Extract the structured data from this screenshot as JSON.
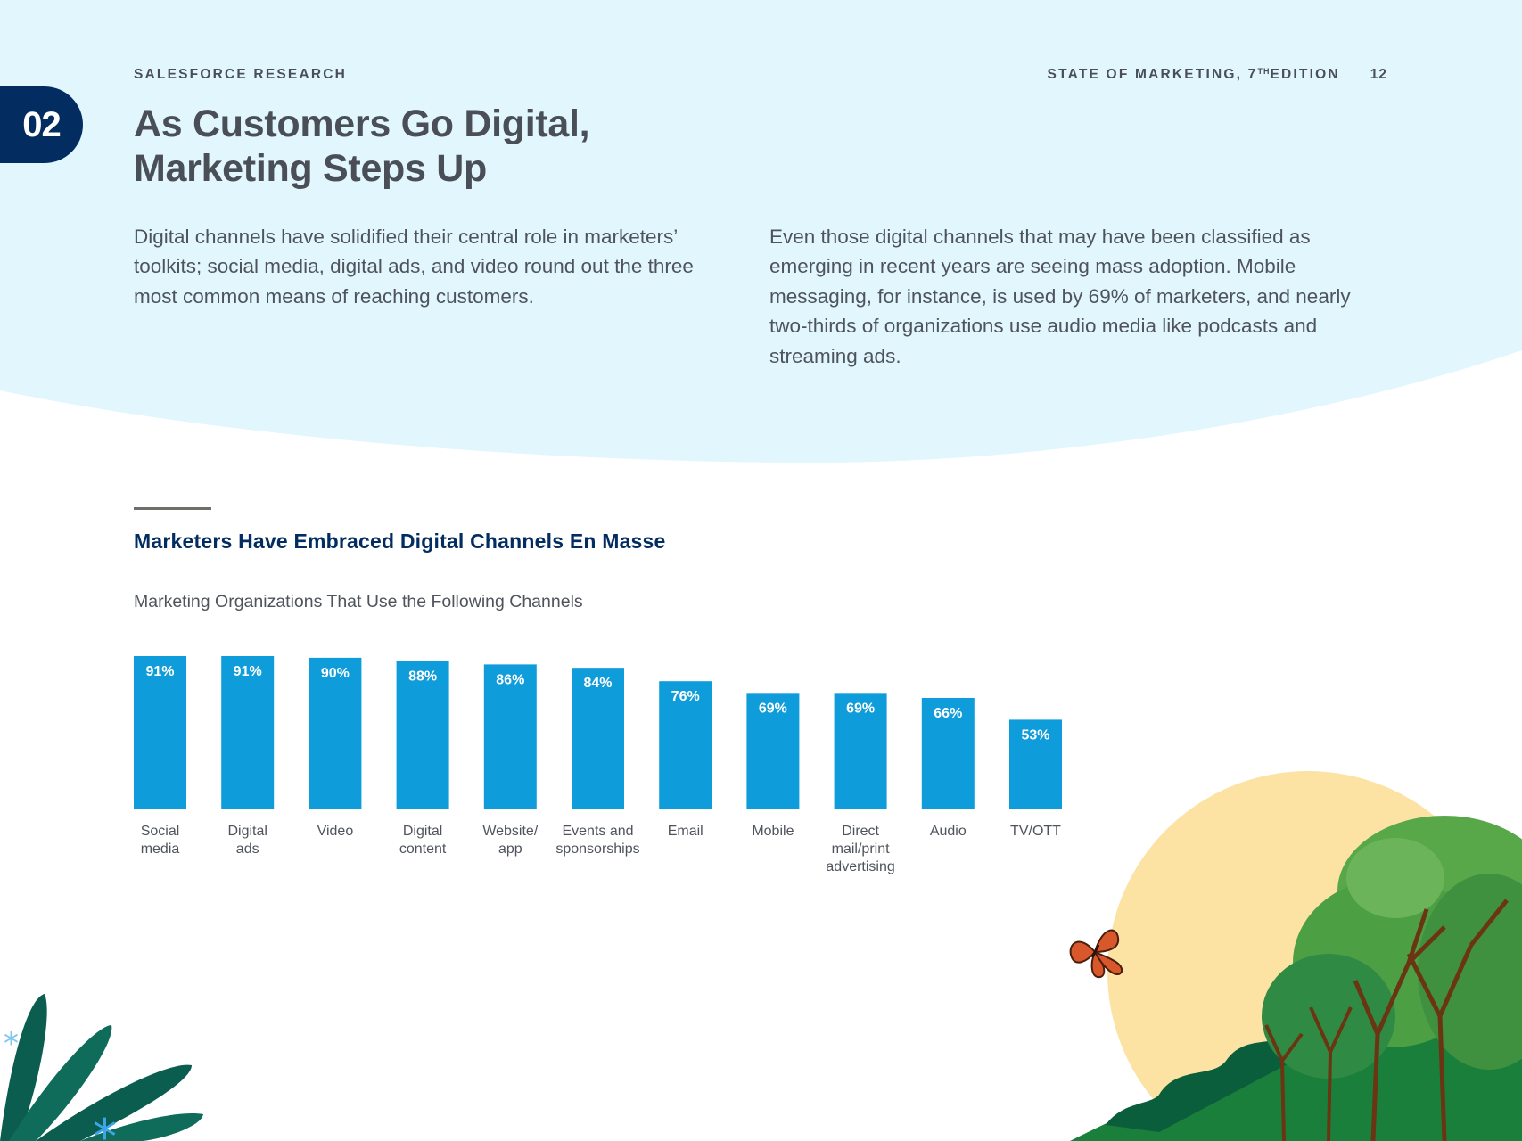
{
  "header": {
    "brand": "SALESFORCE RESEARCH",
    "report": "STATE OF MARKETING, 7",
    "report_sup": "TH",
    "report_suffix": " EDITION",
    "page_number": "12"
  },
  "section": {
    "number": "02"
  },
  "title": {
    "line1": "As Customers Go Digital,",
    "line2": "Marketing Steps Up"
  },
  "intro": {
    "left": "Digital channels have solidified their central role in marketers’ toolkits; social media, digital ads, and video round out the three most common means of reaching customers.",
    "right": "Even those digital channels that may have been classified as emerging in recent years are seeing mass adoption. Mobile messaging, for instance, is used by 69% of marketers, and nearly two-thirds of organizations use audio media like podcasts and streaming ads."
  },
  "colors": {
    "sky": "#e2f6fd",
    "bar": "#0f9cda",
    "navy": "#032d60",
    "sun": "#fce3a3",
    "hill": "#1b7f3c"
  },
  "icons": [
    "butterfly-icon",
    "tree-illustration",
    "leaf-illustration",
    "sun-illustration"
  ],
  "chart_data": {
    "type": "bar",
    "title": "Marketers Have Embraced Digital Channels En Masse",
    "subtitle": "Marketing Organizations That Use the Following Channels",
    "categories": [
      [
        "Social",
        "media"
      ],
      [
        "Digital",
        "ads"
      ],
      [
        "Video"
      ],
      [
        "Digital",
        "content"
      ],
      [
        "Website/",
        "app"
      ],
      [
        "Events and",
        "sponsorships"
      ],
      [
        "Email"
      ],
      [
        "Mobile"
      ],
      [
        "Direct",
        "mail/print",
        "advertising"
      ],
      [
        "Audio"
      ],
      [
        "TV/OTT"
      ]
    ],
    "values": [
      91,
      91,
      90,
      88,
      86,
      84,
      76,
      69,
      69,
      66,
      53
    ],
    "value_labels": [
      "91%",
      "91%",
      "90%",
      "88%",
      "86%",
      "84%",
      "76%",
      "69%",
      "69%",
      "66%",
      "53%"
    ],
    "ylim": [
      0,
      100
    ],
    "grid": false,
    "legend": "none"
  }
}
